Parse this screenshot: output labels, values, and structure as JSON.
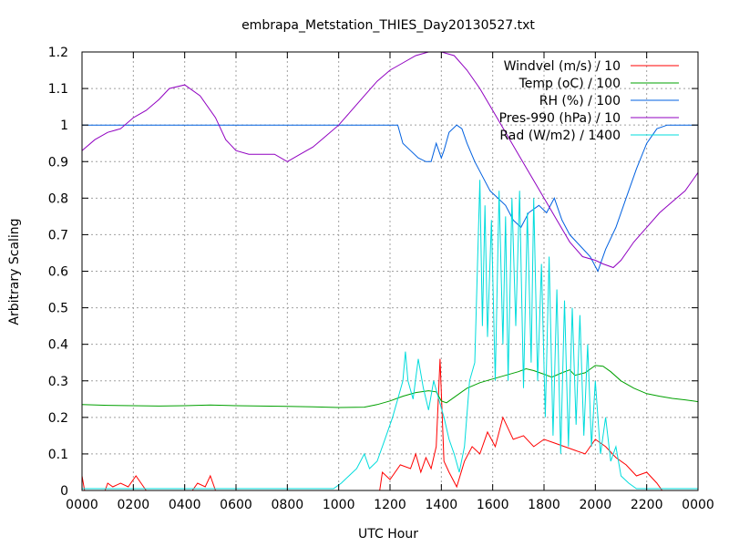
{
  "chart_data": {
    "type": "line",
    "title": "embrapa_Metstation_THIES_Day20130527.txt",
    "xlabel": "UTC Hour",
    "ylabel": "Arbitrary Scaling",
    "xlim": [
      0,
      24
    ],
    "ylim": [
      0,
      1.2
    ],
    "grid": true,
    "legend_position": "top-right",
    "x_ticks": [
      {
        "value": 0,
        "label": "0000"
      },
      {
        "value": 2,
        "label": "0200"
      },
      {
        "value": 4,
        "label": "0400"
      },
      {
        "value": 6,
        "label": "0600"
      },
      {
        "value": 8,
        "label": "0800"
      },
      {
        "value": 10,
        "label": "1000"
      },
      {
        "value": 12,
        "label": "1200"
      },
      {
        "value": 14,
        "label": "1400"
      },
      {
        "value": 16,
        "label": "1600"
      },
      {
        "value": 18,
        "label": "1800"
      },
      {
        "value": 20,
        "label": "2000"
      },
      {
        "value": 22,
        "label": "2200"
      },
      {
        "value": 24,
        "label": "0000"
      }
    ],
    "y_ticks": [
      {
        "value": 0,
        "label": "0"
      },
      {
        "value": 0.1,
        "label": "0.1"
      },
      {
        "value": 0.2,
        "label": "0.2"
      },
      {
        "value": 0.3,
        "label": "0.3"
      },
      {
        "value": 0.4,
        "label": "0.4"
      },
      {
        "value": 0.5,
        "label": "0.5"
      },
      {
        "value": 0.6,
        "label": "0.6"
      },
      {
        "value": 0.7,
        "label": "0.7"
      },
      {
        "value": 0.8,
        "label": "0.8"
      },
      {
        "value": 0.9,
        "label": "0.9"
      },
      {
        "value": 1.0,
        "label": "1"
      },
      {
        "value": 1.1,
        "label": "1.1"
      },
      {
        "value": 1.2,
        "label": "1.2"
      }
    ],
    "series": [
      {
        "name": "Windvel (m/s) / 10",
        "color": "#ff0000",
        "points": [
          [
            0,
            0.04
          ],
          [
            0.1,
            0
          ],
          [
            0.9,
            0
          ],
          [
            1.0,
            0.02
          ],
          [
            1.2,
            0.01
          ],
          [
            1.5,
            0.02
          ],
          [
            1.8,
            0.01
          ],
          [
            2.1,
            0.04
          ],
          [
            2.3,
            0.02
          ],
          [
            2.5,
            0
          ],
          [
            4.3,
            0
          ],
          [
            4.5,
            0.02
          ],
          [
            4.8,
            0.01
          ],
          [
            5.0,
            0.04
          ],
          [
            5.2,
            0
          ],
          [
            11.6,
            0
          ],
          [
            11.7,
            0.05
          ],
          [
            12.0,
            0.03
          ],
          [
            12.4,
            0.07
          ],
          [
            12.8,
            0.06
          ],
          [
            13.0,
            0.1
          ],
          [
            13.2,
            0.05
          ],
          [
            13.4,
            0.09
          ],
          [
            13.6,
            0.06
          ],
          [
            13.8,
            0.12
          ],
          [
            13.95,
            0.36
          ],
          [
            14.1,
            0.08
          ],
          [
            14.3,
            0.05
          ],
          [
            14.6,
            0.01
          ],
          [
            14.9,
            0.08
          ],
          [
            15.2,
            0.12
          ],
          [
            15.5,
            0.1
          ],
          [
            15.8,
            0.16
          ],
          [
            16.1,
            0.12
          ],
          [
            16.4,
            0.2
          ],
          [
            16.8,
            0.14
          ],
          [
            17.2,
            0.15
          ],
          [
            17.6,
            0.12
          ],
          [
            18.0,
            0.14
          ],
          [
            18.4,
            0.13
          ],
          [
            18.8,
            0.12
          ],
          [
            19.2,
            0.11
          ],
          [
            19.6,
            0.1
          ],
          [
            20.0,
            0.14
          ],
          [
            20.4,
            0.12
          ],
          [
            20.8,
            0.09
          ],
          [
            21.2,
            0.07
          ],
          [
            21.6,
            0.04
          ],
          [
            22.0,
            0.05
          ],
          [
            22.4,
            0.02
          ],
          [
            22.6,
            0
          ],
          [
            24,
            0
          ]
        ]
      },
      {
        "name": "Temp (oC) / 100",
        "color": "#00a000",
        "points": [
          [
            0,
            0.235
          ],
          [
            1,
            0.233
          ],
          [
            2,
            0.232
          ],
          [
            3,
            0.231
          ],
          [
            4,
            0.232
          ],
          [
            5,
            0.234
          ],
          [
            6,
            0.232
          ],
          [
            7,
            0.231
          ],
          [
            8,
            0.23
          ],
          [
            9,
            0.229
          ],
          [
            10,
            0.227
          ],
          [
            11,
            0.228
          ],
          [
            11.5,
            0.235
          ],
          [
            12,
            0.245
          ],
          [
            12.5,
            0.258
          ],
          [
            13,
            0.268
          ],
          [
            13.5,
            0.273
          ],
          [
            13.8,
            0.27
          ],
          [
            14.0,
            0.245
          ],
          [
            14.2,
            0.24
          ],
          [
            14.5,
            0.255
          ],
          [
            15,
            0.28
          ],
          [
            15.5,
            0.295
          ],
          [
            16,
            0.305
          ],
          [
            16.5,
            0.315
          ],
          [
            17,
            0.325
          ],
          [
            17.3,
            0.333
          ],
          [
            17.6,
            0.328
          ],
          [
            18,
            0.318
          ],
          [
            18.3,
            0.31
          ],
          [
            18.7,
            0.322
          ],
          [
            19,
            0.33
          ],
          [
            19.2,
            0.315
          ],
          [
            19.6,
            0.322
          ],
          [
            20,
            0.342
          ],
          [
            20.3,
            0.34
          ],
          [
            20.6,
            0.325
          ],
          [
            21,
            0.3
          ],
          [
            21.5,
            0.28
          ],
          [
            22,
            0.265
          ],
          [
            22.5,
            0.258
          ],
          [
            23,
            0.252
          ],
          [
            23.5,
            0.248
          ],
          [
            24,
            0.243
          ]
        ]
      },
      {
        "name": "RH (%) / 100",
        "color": "#0060e0",
        "points": [
          [
            0,
            1.0
          ],
          [
            12.3,
            1.0
          ],
          [
            12.5,
            0.95
          ],
          [
            12.8,
            0.93
          ],
          [
            13.1,
            0.91
          ],
          [
            13.4,
            0.9
          ],
          [
            13.6,
            0.9
          ],
          [
            13.8,
            0.95
          ],
          [
            14.0,
            0.91
          ],
          [
            14.1,
            0.93
          ],
          [
            14.3,
            0.98
          ],
          [
            14.6,
            1.0
          ],
          [
            14.8,
            0.99
          ],
          [
            15.0,
            0.95
          ],
          [
            15.3,
            0.9
          ],
          [
            15.6,
            0.86
          ],
          [
            15.9,
            0.82
          ],
          [
            16.2,
            0.8
          ],
          [
            16.5,
            0.78
          ],
          [
            16.8,
            0.74
          ],
          [
            17.1,
            0.72
          ],
          [
            17.4,
            0.76
          ],
          [
            17.8,
            0.78
          ],
          [
            18.1,
            0.76
          ],
          [
            18.4,
            0.8
          ],
          [
            18.7,
            0.74
          ],
          [
            19.0,
            0.7
          ],
          [
            19.4,
            0.67
          ],
          [
            19.8,
            0.64
          ],
          [
            20.1,
            0.6
          ],
          [
            20.4,
            0.66
          ],
          [
            20.8,
            0.72
          ],
          [
            21.2,
            0.8
          ],
          [
            21.6,
            0.88
          ],
          [
            22.0,
            0.95
          ],
          [
            22.4,
            0.99
          ],
          [
            22.8,
            1.0
          ],
          [
            24,
            1.0
          ]
        ]
      },
      {
        "name": "Pres-990 (hPa) / 10",
        "color": "#9000c0",
        "points": [
          [
            0,
            0.93
          ],
          [
            0.5,
            0.96
          ],
          [
            1,
            0.98
          ],
          [
            1.5,
            0.99
          ],
          [
            2,
            1.02
          ],
          [
            2.5,
            1.04
          ],
          [
            3,
            1.07
          ],
          [
            3.4,
            1.1
          ],
          [
            4,
            1.11
          ],
          [
            4.6,
            1.08
          ],
          [
            5.2,
            1.02
          ],
          [
            5.6,
            0.96
          ],
          [
            6,
            0.93
          ],
          [
            6.5,
            0.92
          ],
          [
            7,
            0.92
          ],
          [
            7.5,
            0.92
          ],
          [
            8,
            0.9
          ],
          [
            8.5,
            0.92
          ],
          [
            9,
            0.94
          ],
          [
            9.5,
            0.97
          ],
          [
            10,
            1.0
          ],
          [
            10.5,
            1.04
          ],
          [
            11,
            1.08
          ],
          [
            11.5,
            1.12
          ],
          [
            12,
            1.15
          ],
          [
            12.5,
            1.17
          ],
          [
            13,
            1.19
          ],
          [
            13.5,
            1.2
          ],
          [
            14,
            1.2
          ],
          [
            14.5,
            1.19
          ],
          [
            15,
            1.15
          ],
          [
            15.5,
            1.1
          ],
          [
            16,
            1.04
          ],
          [
            16.5,
            0.98
          ],
          [
            17,
            0.92
          ],
          [
            17.5,
            0.86
          ],
          [
            18,
            0.8
          ],
          [
            18.5,
            0.74
          ],
          [
            19,
            0.68
          ],
          [
            19.5,
            0.64
          ],
          [
            20,
            0.63
          ],
          [
            20.3,
            0.62
          ],
          [
            20.7,
            0.61
          ],
          [
            21,
            0.63
          ],
          [
            21.5,
            0.68
          ],
          [
            22,
            0.72
          ],
          [
            22.5,
            0.76
          ],
          [
            23,
            0.79
          ],
          [
            23.5,
            0.82
          ],
          [
            24,
            0.87
          ]
        ]
      },
      {
        "name": "Rad (W/m2) / 1400",
        "color": "#00dcdc",
        "points": [
          [
            0,
            0.005
          ],
          [
            9.8,
            0.005
          ],
          [
            10.1,
            0.02
          ],
          [
            10.4,
            0.04
          ],
          [
            10.7,
            0.06
          ],
          [
            11.0,
            0.1
          ],
          [
            11.2,
            0.06
          ],
          [
            11.5,
            0.08
          ],
          [
            11.8,
            0.14
          ],
          [
            12.1,
            0.2
          ],
          [
            12.3,
            0.25
          ],
          [
            12.5,
            0.3
          ],
          [
            12.6,
            0.38
          ],
          [
            12.7,
            0.3
          ],
          [
            12.9,
            0.25
          ],
          [
            13.1,
            0.36
          ],
          [
            13.3,
            0.28
          ],
          [
            13.5,
            0.22
          ],
          [
            13.7,
            0.3
          ],
          [
            13.9,
            0.25
          ],
          [
            14.1,
            0.2
          ],
          [
            14.3,
            0.14
          ],
          [
            14.5,
            0.1
          ],
          [
            14.7,
            0.05
          ],
          [
            14.9,
            0.12
          ],
          [
            15.1,
            0.3
          ],
          [
            15.3,
            0.35
          ],
          [
            15.5,
            0.85
          ],
          [
            15.6,
            0.45
          ],
          [
            15.7,
            0.78
          ],
          [
            15.8,
            0.42
          ],
          [
            15.95,
            0.74
          ],
          [
            16.1,
            0.3
          ],
          [
            16.25,
            0.82
          ],
          [
            16.4,
            0.4
          ],
          [
            16.5,
            0.75
          ],
          [
            16.6,
            0.3
          ],
          [
            16.75,
            0.8
          ],
          [
            16.9,
            0.45
          ],
          [
            17.05,
            0.82
          ],
          [
            17.2,
            0.28
          ],
          [
            17.35,
            0.76
          ],
          [
            17.5,
            0.35
          ],
          [
            17.6,
            0.8
          ],
          [
            17.75,
            0.3
          ],
          [
            17.9,
            0.62
          ],
          [
            18.05,
            0.2
          ],
          [
            18.2,
            0.64
          ],
          [
            18.35,
            0.15
          ],
          [
            18.5,
            0.55
          ],
          [
            18.65,
            0.1
          ],
          [
            18.8,
            0.52
          ],
          [
            18.95,
            0.12
          ],
          [
            19.1,
            0.5
          ],
          [
            19.25,
            0.18
          ],
          [
            19.4,
            0.48
          ],
          [
            19.55,
            0.15
          ],
          [
            19.7,
            0.4
          ],
          [
            19.85,
            0.12
          ],
          [
            20.0,
            0.3
          ],
          [
            20.2,
            0.1
          ],
          [
            20.4,
            0.2
          ],
          [
            20.6,
            0.08
          ],
          [
            20.8,
            0.12
          ],
          [
            21.0,
            0.04
          ],
          [
            21.3,
            0.02
          ],
          [
            21.6,
            0.005
          ],
          [
            24,
            0.005
          ]
        ]
      }
    ]
  }
}
